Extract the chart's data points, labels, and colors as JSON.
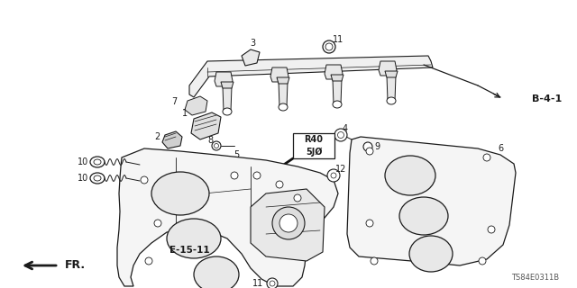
{
  "bg_color": "#ffffff",
  "line_color": "#1a1a1a",
  "footer_text": "TS84E0311B",
  "fr_label": "FR.",
  "ref_box1": "R40",
  "ref_box2": "5JØ",
  "b41_label": "B-4-1",
  "e1511_label": "E-15-11",
  "figsize": [
    6.4,
    3.2
  ],
  "dpi": 100
}
